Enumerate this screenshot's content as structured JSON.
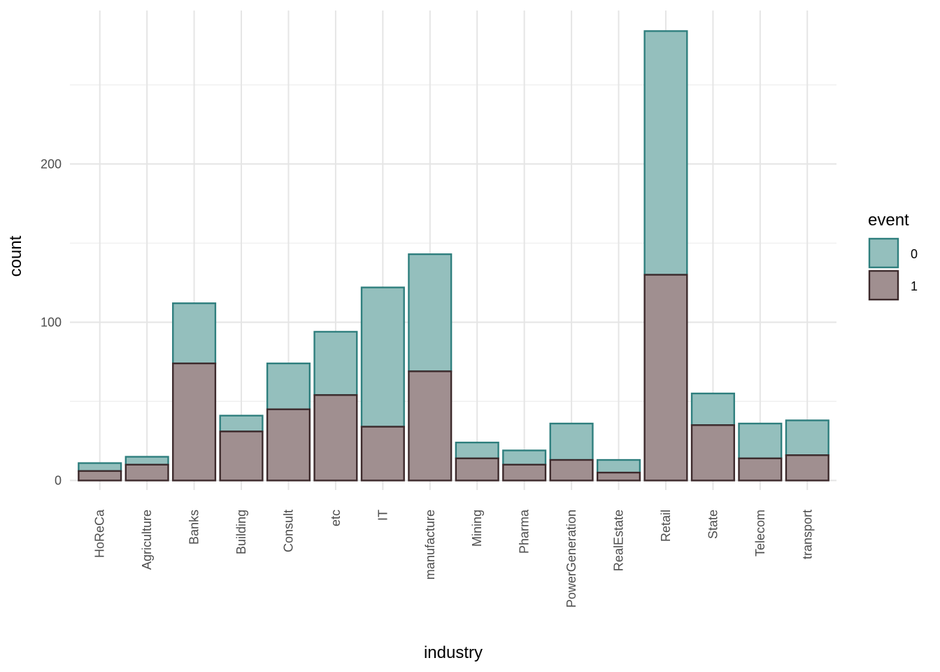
{
  "chart_data": {
    "type": "bar",
    "stacked": true,
    "xlabel": "industry",
    "ylabel": "count",
    "categories": [
      "HoReCa",
      "Agriculture",
      "Banks",
      "Building",
      "Consult",
      "etc",
      "IT",
      "manufacture",
      "Mining",
      "Pharma",
      "PowerGeneration",
      "RealEstate",
      "Retail",
      "State",
      "Telecom",
      "transport"
    ],
    "series": [
      {
        "name": "0",
        "values": [
          5,
          5,
          38,
          10,
          29,
          40,
          88,
          74,
          10,
          9,
          23,
          8,
          154,
          20,
          22,
          22
        ]
      },
      {
        "name": "1",
        "values": [
          6,
          10,
          74,
          31,
          45,
          54,
          34,
          69,
          14,
          10,
          13,
          5,
          130,
          35,
          14,
          16
        ]
      }
    ],
    "ylim": [
      -6,
      297
    ],
    "yticks": [
      0,
      100,
      200
    ],
    "grid": true,
    "legend": {
      "title": "event",
      "position": "right",
      "entries": [
        "0",
        "1"
      ]
    },
    "colors": {
      "series_0_fill": "#94bfbd",
      "series_0_stroke": "#2f7f7e",
      "series_1_fill": "#a08f90",
      "series_1_stroke": "#3d2a2c",
      "grid_major": "#e5e5e5",
      "grid_minor": "#eeeeee",
      "tick_text": "#4d4d4d"
    }
  }
}
